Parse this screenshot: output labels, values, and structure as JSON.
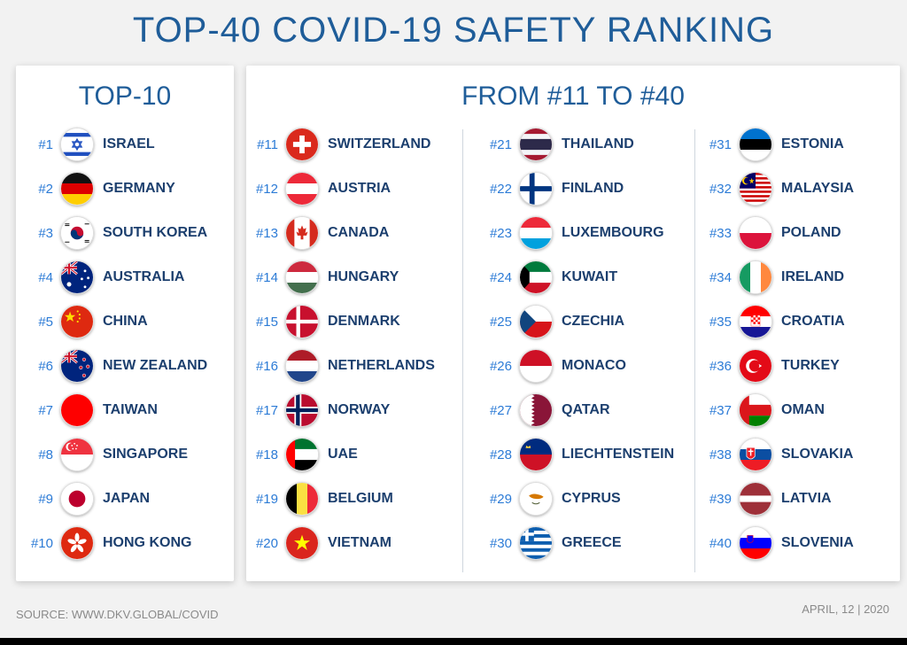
{
  "title": "TOP-40 COVID-19 SAFETY RANKING",
  "top10": {
    "heading": "TOP-10",
    "items": [
      {
        "rank": "#1",
        "name": "ISRAEL",
        "flag": "israel-flag-icon"
      },
      {
        "rank": "#2",
        "name": "GERMANY",
        "flag": "germany-flag-icon"
      },
      {
        "rank": "#3",
        "name": "SOUTH KOREA",
        "flag": "south-korea-flag-icon"
      },
      {
        "rank": "#4",
        "name": "AUSTRALIA",
        "flag": "australia-flag-icon"
      },
      {
        "rank": "#5",
        "name": "CHINA",
        "flag": "china-flag-icon"
      },
      {
        "rank": "#6",
        "name": "NEW ZEALAND",
        "flag": "new-zealand-flag-icon"
      },
      {
        "rank": "#7",
        "name": "TAIWAN",
        "flag": "taiwan-flag-icon"
      },
      {
        "rank": "#8",
        "name": "SINGAPORE",
        "flag": "singapore-flag-icon"
      },
      {
        "rank": "#9",
        "name": "JAPAN",
        "flag": "japan-flag-icon"
      },
      {
        "rank": "#10",
        "name": "HONG KONG",
        "flag": "hong-kong-flag-icon"
      }
    ]
  },
  "rest": {
    "heading": "FROM #11 TO #40",
    "col1": [
      {
        "rank": "#11",
        "name": "SWITZERLAND",
        "flag": "switzerland-flag-icon"
      },
      {
        "rank": "#12",
        "name": "AUSTRIA",
        "flag": "austria-flag-icon"
      },
      {
        "rank": "#13",
        "name": "CANADA",
        "flag": "canada-flag-icon"
      },
      {
        "rank": "#14",
        "name": "HUNGARY",
        "flag": "hungary-flag-icon"
      },
      {
        "rank": "#15",
        "name": "DENMARK",
        "flag": "denmark-flag-icon"
      },
      {
        "rank": "#16",
        "name": "NETHERLANDS",
        "flag": "netherlands-flag-icon"
      },
      {
        "rank": "#17",
        "name": "NORWAY",
        "flag": "norway-flag-icon"
      },
      {
        "rank": "#18",
        "name": "UAE",
        "flag": "uae-flag-icon"
      },
      {
        "rank": "#19",
        "name": "BELGIUM",
        "flag": "belgium-flag-icon"
      },
      {
        "rank": "#20",
        "name": "VIETNAM",
        "flag": "vietnam-flag-icon"
      }
    ],
    "col2": [
      {
        "rank": "#21",
        "name": "THAILAND",
        "flag": "thailand-flag-icon"
      },
      {
        "rank": "#22",
        "name": "FINLAND",
        "flag": "finland-flag-icon"
      },
      {
        "rank": "#23",
        "name": "LUXEMBOURG",
        "flag": "luxembourg-flag-icon"
      },
      {
        "rank": "#24",
        "name": "KUWAIT",
        "flag": "kuwait-flag-icon"
      },
      {
        "rank": "#25",
        "name": "CZECHIA",
        "flag": "czechia-flag-icon"
      },
      {
        "rank": "#26",
        "name": "MONACO",
        "flag": "monaco-flag-icon"
      },
      {
        "rank": "#27",
        "name": "QATAR",
        "flag": "qatar-flag-icon"
      },
      {
        "rank": "#28",
        "name": "LIECHTENSTEIN",
        "flag": "liechtenstein-flag-icon"
      },
      {
        "rank": "#29",
        "name": "CYPRUS",
        "flag": "cyprus-flag-icon"
      },
      {
        "rank": "#30",
        "name": "GREECE",
        "flag": "greece-flag-icon"
      }
    ],
    "col3": [
      {
        "rank": "#31",
        "name": "ESTONIA",
        "flag": "estonia-flag-icon"
      },
      {
        "rank": "#32",
        "name": "MALAYSIA",
        "flag": "malaysia-flag-icon"
      },
      {
        "rank": "#33",
        "name": "POLAND",
        "flag": "poland-flag-icon"
      },
      {
        "rank": "#34",
        "name": "IRELAND",
        "flag": "ireland-flag-icon"
      },
      {
        "rank": "#35",
        "name": "CROATIA",
        "flag": "croatia-flag-icon"
      },
      {
        "rank": "#36",
        "name": "TURKEY",
        "flag": "turkey-flag-icon"
      },
      {
        "rank": "#37",
        "name": "OMAN",
        "flag": "oman-flag-icon"
      },
      {
        "rank": "#38",
        "name": "SLOVAKIA",
        "flag": "slovakia-flag-icon"
      },
      {
        "rank": "#39",
        "name": "LATVIA",
        "flag": "latvia-flag-icon"
      },
      {
        "rank": "#40",
        "name": "SLOVENIA",
        "flag": "slovenia-flag-icon"
      }
    ]
  },
  "footer": {
    "source": "SOURCE: WWW.DKV.GLOBAL/COVID",
    "date": "APRIL, 12 | 2020"
  },
  "colors": {
    "title": "#1f5d99",
    "rank": "#2c7bd6",
    "name": "#1c3f6e"
  }
}
